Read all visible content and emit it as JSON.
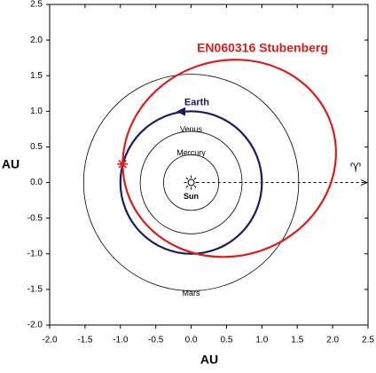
{
  "chart_data": {
    "type": "orbit",
    "title": "EN060316 Stubenberg",
    "x_label": "AU",
    "y_label": "AU",
    "xlim": [
      -2.0,
      2.5
    ],
    "ylim": [
      -2.0,
      2.5
    ],
    "xticks": [
      {
        "value": -2,
        "label": "-2.0"
      },
      -1.5,
      {
        "value": -1,
        "label": "-1.0"
      },
      -0.5,
      {
        "value": 0,
        "label": "0.0"
      },
      0.5,
      {
        "value": 1,
        "label": "1.0"
      },
      1.5,
      {
        "value": 2,
        "label": "2.0"
      },
      2.5
    ],
    "yticks": [
      {
        "value": -2,
        "label": "-2.0"
      },
      -1.5,
      {
        "value": -1,
        "label": "-1.0"
      },
      -0.5,
      {
        "value": 0,
        "label": "0.0"
      },
      0.5,
      {
        "value": 1,
        "label": "1.0"
      },
      1.5,
      {
        "value": 2,
        "label": "2.0"
      },
      2.5
    ],
    "sun_label": "Sun",
    "vernal_label": "♈",
    "planets": [
      {
        "name": "Mercury",
        "radius": 0.39,
        "color": "#000000"
      },
      {
        "name": "Venus",
        "radius": 0.72,
        "color": "#000000"
      },
      {
        "name": "Earth",
        "radius": 1.0,
        "color": "#1a1a66"
      },
      {
        "name": "Mars",
        "radius": 1.52,
        "color": "#000000"
      }
    ],
    "fireball": {
      "color": "#d91e1e",
      "center_x": 0.54,
      "center_y": 0.34,
      "rx": 1.52,
      "ry": 1.37,
      "angle": -18
    },
    "impact_point": {
      "x": -0.97,
      "y": 0.26
    }
  }
}
